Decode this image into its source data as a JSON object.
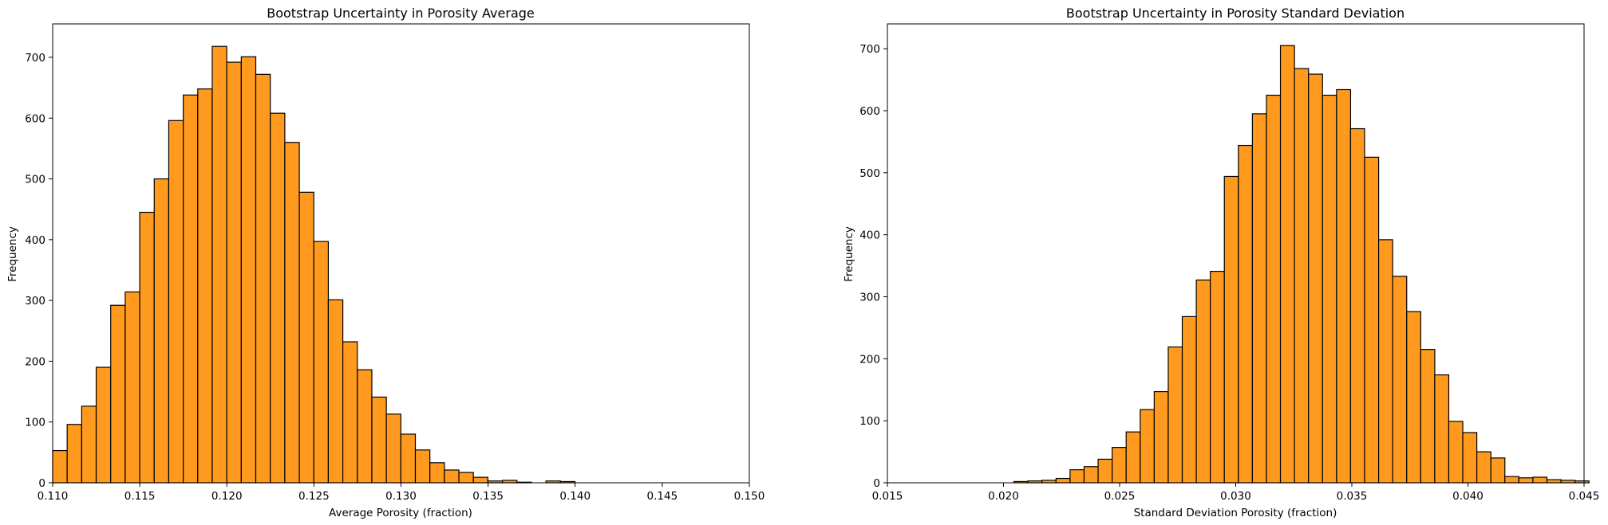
{
  "figure": {
    "bar_color": "#ff9a1f",
    "edge_color": "#000000"
  },
  "chart_data": [
    {
      "type": "histogram",
      "title": "Bootstrap Uncertainty in Porosity Average",
      "xlabel": "Average Porosity (fraction)",
      "ylabel": "Frequency",
      "xlim": [
        0.11,
        0.15
      ],
      "ylim": [
        0,
        755
      ],
      "xticks": [
        "0.110",
        "0.115",
        "0.120",
        "0.125",
        "0.130",
        "0.135",
        "0.140",
        "0.145",
        "0.150"
      ],
      "yticks": [
        "0",
        "100",
        "200",
        "300",
        "400",
        "500",
        "600",
        "700"
      ],
      "bin_start": 0.11,
      "bin_width": 0.000833,
      "values": [
        53,
        96,
        126,
        190,
        292,
        314,
        445,
        500,
        596,
        638,
        648,
        718,
        692,
        701,
        672,
        608,
        560,
        478,
        397,
        301,
        232,
        186,
        141,
        113,
        80,
        54,
        33,
        21,
        17,
        9,
        3,
        4,
        1,
        0,
        3,
        2,
        0
      ]
    },
    {
      "type": "histogram",
      "title": "Bootstrap Uncertainty in Porosity Standard Deviation",
      "xlabel": "Standard Deviation Porosity (fraction)",
      "ylabel": "Frequency",
      "xlim": [
        0.015,
        0.045
      ],
      "ylim": [
        0,
        740
      ],
      "xticks": [
        "0.015",
        "0.020",
        "0.025",
        "0.030",
        "0.035",
        "0.040",
        "0.045"
      ],
      "yticks": [
        "0",
        "100",
        "200",
        "300",
        "400",
        "500",
        "600",
        "700"
      ],
      "bin_start": 0.02045,
      "bin_width": 0.000604,
      "values": [
        2,
        3,
        4,
        7,
        21,
        26,
        38,
        57,
        82,
        118,
        147,
        219,
        268,
        327,
        341,
        494,
        544,
        595,
        625,
        705,
        668,
        659,
        625,
        634,
        571,
        525,
        392,
        333,
        276,
        215,
        174,
        99,
        81,
        50,
        40,
        10,
        8,
        9,
        5,
        4,
        3
      ]
    }
  ]
}
